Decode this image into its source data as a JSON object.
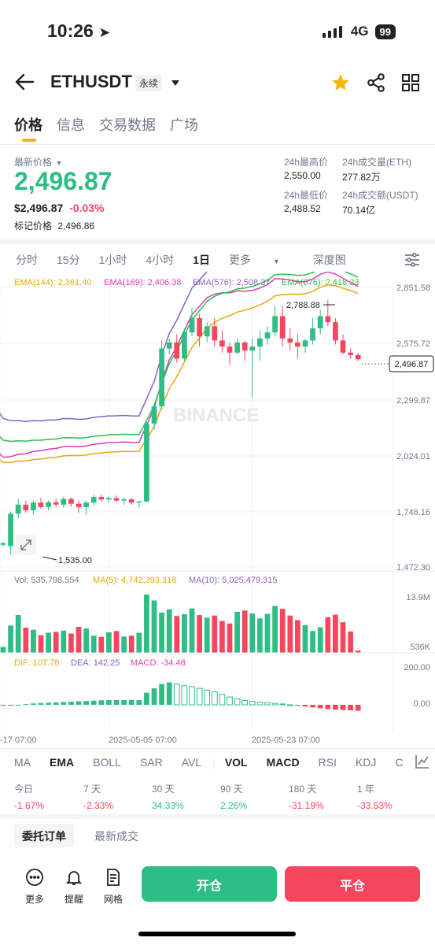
{
  "status": {
    "time": "10:26",
    "network": "4G",
    "battery": "99"
  },
  "header": {
    "symbol": "ETHUSDT",
    "contract_type": "永续"
  },
  "tabs": [
    {
      "label": "价格"
    },
    {
      "label": "信息"
    },
    {
      "label": "交易数据"
    },
    {
      "label": "广场"
    }
  ],
  "price": {
    "last_label": "最新价格",
    "last": "2,496.87",
    "usd": "$2,496.87",
    "change": "-0.03%",
    "mark_label": "标记价格",
    "mark": "2,496.86"
  },
  "stats": {
    "high_label": "24h最高价",
    "high": "2,550.00",
    "vol_eth_label": "24h成交量(ETH)",
    "vol_eth": "277.82万",
    "low_label": "24h最低价",
    "low": "2,488.52",
    "vol_usdt_label": "24h成交额(USDT)",
    "vol_usdt": "70.14亿"
  },
  "intervals": [
    {
      "label": "分时"
    },
    {
      "label": "15分"
    },
    {
      "label": "1小时"
    },
    {
      "label": "4小时"
    },
    {
      "label": "1日"
    },
    {
      "label": "更多"
    },
    {
      "label": "深度图"
    }
  ],
  "chart": {
    "ema": [
      {
        "label": "EMA(144): 2,361.40",
        "color": "#e9a70e"
      },
      {
        "label": "EMA(169): 2,406.38",
        "color": "#d63fb4"
      },
      {
        "label": "EMA(576): 2,508.37",
        "color": "#8b5fc7"
      },
      {
        "label": "EMA(676): 2,418.23",
        "color": "#2dbf4a"
      }
    ],
    "y_ticks": [
      "2,851.58",
      "2,575.72",
      "2,299.87",
      "2,024.01",
      "1,748.16",
      "1,472.30"
    ],
    "current_price": "2,496.87",
    "high_marker": "2,788.88",
    "low_marker": "1,535.00",
    "watermark": "BINANCE",
    "volume": {
      "vol_label": "Vol: 535,798.554",
      "ma5_label": "MA(5): 4,742,393.318",
      "ma10_label": "MA(10): 5,025,479.315",
      "max_tick": "13.9M",
      "min_tick": "536K"
    },
    "macd": {
      "dif_label": "DIF: 107.78",
      "dea_label": "DEA: 142.25",
      "macd_label": "MACD: -34.48",
      "ticks": [
        "200.00",
        "0.00"
      ]
    },
    "x_ticks": [
      "-17 07:00",
      "2025-05-05 07:00",
      "2025-05-23 07:00"
    ]
  },
  "chart_data": {
    "type": "candlestick",
    "timeframe": "1日",
    "ylim": [
      1472.3,
      2851.58
    ],
    "candles": [
      [
        1585,
        1592,
        1570,
        1588
      ],
      [
        1588,
        1600,
        1575,
        1582
      ],
      [
        1582,
        1595,
        1570,
        1590
      ],
      [
        1575,
        1745,
        1535,
        1735
      ],
      [
        1735,
        1808,
        1710,
        1780
      ],
      [
        1780,
        1800,
        1740,
        1752
      ],
      [
        1752,
        1800,
        1730,
        1790
      ],
      [
        1790,
        1812,
        1760,
        1768
      ],
      [
        1768,
        1800,
        1750,
        1792
      ],
      [
        1792,
        1810,
        1770,
        1780
      ],
      [
        1780,
        1820,
        1765,
        1808
      ],
      [
        1808,
        1815,
        1770,
        1784
      ],
      [
        1784,
        1800,
        1740,
        1768
      ],
      [
        1768,
        1800,
        1730,
        1790
      ],
      [
        1790,
        1830,
        1775,
        1818
      ],
      [
        1818,
        1830,
        1795,
        1805
      ],
      [
        1805,
        1820,
        1790,
        1812
      ],
      [
        1812,
        1825,
        1795,
        1800
      ],
      [
        1800,
        1815,
        1780,
        1806
      ],
      [
        1806,
        1812,
        1778,
        1790
      ],
      [
        1790,
        1800,
        1765,
        1796
      ],
      [
        1796,
        2200,
        1790,
        2180
      ],
      [
        2180,
        2280,
        2150,
        2265
      ],
      [
        2265,
        2590,
        2250,
        2550
      ],
      [
        2550,
        2600,
        2520,
        2580
      ],
      [
        2580,
        2620,
        2480,
        2500
      ],
      [
        2500,
        2650,
        2490,
        2630
      ],
      [
        2630,
        2750,
        2610,
        2700
      ],
      [
        2700,
        2720,
        2560,
        2610
      ],
      [
        2610,
        2680,
        2580,
        2660
      ],
      [
        2660,
        2700,
        2560,
        2590
      ],
      [
        2590,
        2640,
        2530,
        2560
      ],
      [
        2560,
        2580,
        2470,
        2530
      ],
      [
        2530,
        2600,
        2520,
        2580
      ],
      [
        2580,
        2590,
        2490,
        2540
      ],
      [
        2540,
        2600,
        2310,
        2560
      ],
      [
        2560,
        2640,
        2490,
        2600
      ],
      [
        2600,
        2660,
        2570,
        2630
      ],
      [
        2630,
        2760,
        2610,
        2710
      ],
      [
        2710,
        2760,
        2560,
        2600
      ],
      [
        2600,
        2650,
        2540,
        2580
      ],
      [
        2580,
        2620,
        2500,
        2560
      ],
      [
        2560,
        2600,
        2530,
        2590
      ],
      [
        2590,
        2700,
        2570,
        2650
      ],
      [
        2650,
        2740,
        2620,
        2710
      ],
      [
        2710,
        2788,
        2660,
        2680
      ],
      [
        2680,
        2700,
        2570,
        2590
      ],
      [
        2590,
        2620,
        2520,
        2530
      ],
      [
        2530,
        2550,
        2500,
        2518
      ],
      [
        2518,
        2530,
        2488,
        2497
      ]
    ],
    "volume_ylim": [
      536000,
      13900000
    ],
    "volume": [
      1.0,
      1.2,
      1.4,
      6.5,
      9.0,
      6.0,
      5.5,
      4.2,
      4.8,
      5.0,
      5.3,
      4.6,
      6.2,
      5.8,
      4.1,
      3.8,
      4.9,
      5.2,
      3.9,
      4.1,
      4.8,
      13.9,
      12.5,
      9.6,
      10.4,
      8.8,
      9.2,
      10.6,
      9.0,
      8.4,
      8.9,
      7.6,
      7.0,
      9.8,
      10.1,
      9.4,
      8.2,
      9.3,
      11.2,
      10.5,
      8.9,
      7.8,
      6.6,
      5.2,
      6.1,
      8.5,
      9.1,
      7.3,
      5.1,
      0.54
    ],
    "macd_hist": [
      -5,
      -4,
      -3,
      -2,
      0,
      4,
      8,
      10,
      12,
      14,
      16,
      18,
      20,
      22,
      24,
      26,
      27,
      28,
      28,
      28,
      27,
      70,
      95,
      120,
      130,
      120,
      110,
      105,
      95,
      85,
      75,
      60,
      45,
      35,
      25,
      20,
      15,
      12,
      8,
      5,
      0,
      -5,
      -10,
      -15,
      -20,
      -25,
      -28,
      -30,
      -32,
      -34
    ],
    "x_labels": [
      "-17 07:00",
      "2025-05-05 07:00",
      "2025-05-23 07:00"
    ]
  },
  "indicator_tabs": [
    {
      "label": "MA"
    },
    {
      "label": "EMA"
    },
    {
      "label": "BOLL"
    },
    {
      "label": "SAR"
    },
    {
      "label": "AVL"
    },
    {
      "label": "VOL"
    },
    {
      "label": "MACD"
    },
    {
      "label": "RSI"
    },
    {
      "label": "KDJ"
    },
    {
      "label": "C"
    }
  ],
  "performance": [
    {
      "label": "今日",
      "value": "-1.67%",
      "color": "#f6465d"
    },
    {
      "label": "7 天",
      "value": "-2.33%",
      "color": "#f6465d"
    },
    {
      "label": "30 天",
      "value": "34.33%",
      "color": "#2ebd85"
    },
    {
      "label": "90 天",
      "value": "2.26%",
      "color": "#2ebd85"
    },
    {
      "label": "180 天",
      "value": "-31.19%",
      "color": "#f6465d"
    },
    {
      "label": "1 年",
      "value": "-33.53%",
      "color": "#f6465d"
    }
  ],
  "order_tabs": [
    {
      "label": "委托订单"
    },
    {
      "label": "最新成交"
    }
  ],
  "bottom": {
    "more": "更多",
    "alert": "提醒",
    "grid": "网格",
    "open": "开仓",
    "close": "平仓",
    "open_color": "#2ebd85",
    "close_color": "#f6465d"
  },
  "colors": {
    "up": "#2ebd85",
    "down": "#f6465d",
    "accent": "#f0b90b"
  }
}
